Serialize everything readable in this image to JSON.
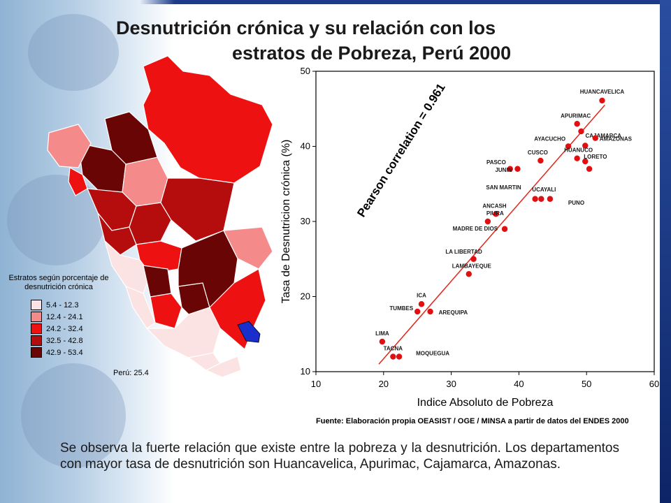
{
  "title_line1": "Desnutrición crónica y su relación con los",
  "title_line2": "estratos de Pobreza, Perú 2000",
  "legend": {
    "title": "Estratos según porcentaje de desnutrición crónica",
    "items": [
      {
        "label": "5.4 - 12.3",
        "color": "#fbe3e3"
      },
      {
        "label": "12.4 - 24.1",
        "color": "#f58a8a"
      },
      {
        "label": "24.2 - 32.4",
        "color": "#ee1111"
      },
      {
        "label": "32.5 - 42.8",
        "color": "#b50d0d"
      },
      {
        "label": "42.9 - 53.4",
        "color": "#6a0505"
      }
    ]
  },
  "peru_total": "Perú:  25.4",
  "source": "Fuente: Elaboración propia OEASIST / OGE / MINSA a partir de datos del ENDES 2000",
  "note": "Se observa la fuerte relación que existe entre la pobreza y la desnutrición. Los departamentos con mayor tasa de desnutrición son Huancavelica, Apurimac, Cajamarca, Amazonas.",
  "chart_data": {
    "type": "scatter",
    "xlabel": "Indice Absoluto de Pobreza",
    "ylabel": "Tasa de Desnutricion crónica (%)",
    "annotation": "Pearson correlation = 0.961",
    "xlim": [
      10,
      60
    ],
    "ylim": [
      10,
      50
    ],
    "xticks": [
      10,
      20,
      30,
      40,
      50,
      60
    ],
    "yticks": [
      10,
      20,
      30,
      40,
      50
    ],
    "trendline": {
      "x": [
        19.3,
        52.7
      ],
      "y": [
        11.0,
        45.5
      ]
    },
    "points": [
      {
        "label": "HUANCAVELICA",
        "x": 52.3,
        "y": 46.1
      },
      {
        "label": "APURIMAC",
        "x": 48.6,
        "y": 43.0
      },
      {
        "label": "CAJAMARCA",
        "x": 49.2,
        "y": 42.0
      },
      {
        "label": "AMAZONAS",
        "x": 51.3,
        "y": 41.1
      },
      {
        "label": "AYACUCHO",
        "x": 47.3,
        "y": 40.0
      },
      {
        "label": "",
        "x": 49.8,
        "y": 40.1
      },
      {
        "label": "CUSCO",
        "x": 43.2,
        "y": 38.1
      },
      {
        "label": "HUANUCO",
        "x": 48.6,
        "y": 38.4
      },
      {
        "label": "LORETO",
        "x": 49.8,
        "y": 38.0
      },
      {
        "label": "",
        "x": 50.4,
        "y": 37.0
      },
      {
        "label": "PASCO",
        "x": 38.7,
        "y": 37.0
      },
      {
        "label": "JUNIN",
        "x": 39.8,
        "y": 37.0
      },
      {
        "label": "SAN MARTIN",
        "x": 42.4,
        "y": 33.0
      },
      {
        "label": "UCAYALI",
        "x": 43.3,
        "y": 33.0
      },
      {
        "label": "PUNO",
        "x": 44.6,
        "y": 33.0
      },
      {
        "label": "ANCASH",
        "x": 36.6,
        "y": 31.0
      },
      {
        "label": "PIURA",
        "x": 35.4,
        "y": 30.0
      },
      {
        "label": "MADRE DE DIOS",
        "x": 37.9,
        "y": 29.0
      },
      {
        "label": "LA LIBERTAD",
        "x": 33.3,
        "y": 25.0
      },
      {
        "label": "LAMBAYEQUE",
        "x": 32.6,
        "y": 23.0
      },
      {
        "label": "ICA",
        "x": 25.6,
        "y": 19.0
      },
      {
        "label": "TUMBES",
        "x": 25.0,
        "y": 18.0
      },
      {
        "label": "AREQUIPA",
        "x": 26.9,
        "y": 18.0
      },
      {
        "label": "LIMA",
        "x": 19.8,
        "y": 14.0
      },
      {
        "label": "TACNA",
        "x": 21.4,
        "y": 12.0
      },
      {
        "label": "MOQUEGUA",
        "x": 22.3,
        "y": 12.0
      }
    ]
  }
}
